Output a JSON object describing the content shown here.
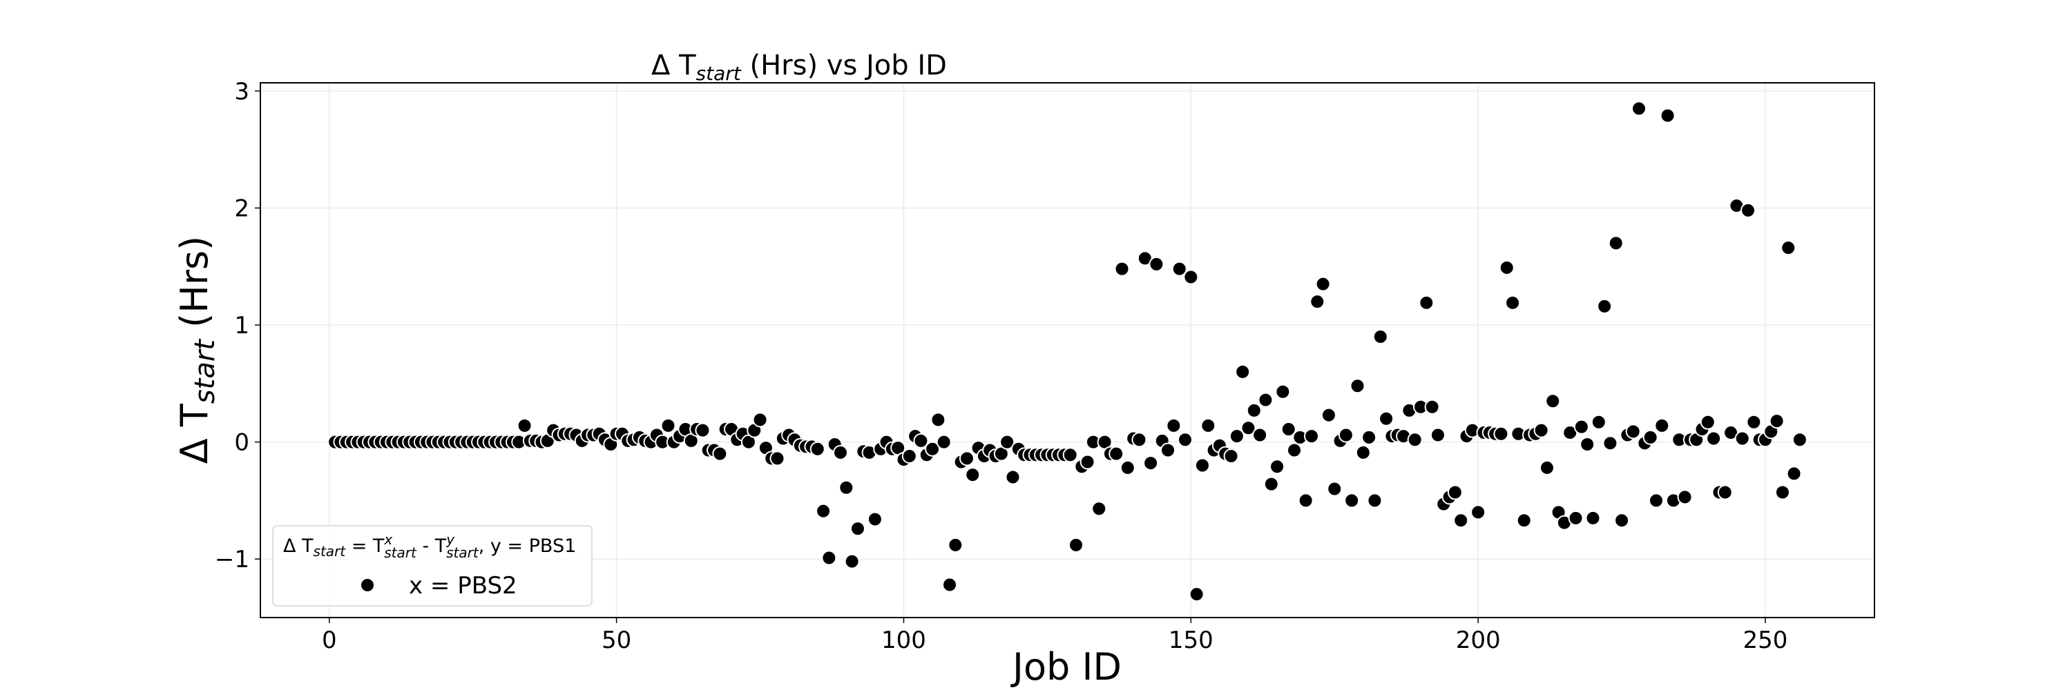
{
  "chart_data": {
    "type": "scatter",
    "title": {
      "prefix": "Δ T",
      "sub": "start",
      "suffix": " (Hrs) vs Job ID"
    },
    "xlabel": "Job ID",
    "ylabel": {
      "prefix": "Δ T",
      "sub": "start",
      "suffix": " (Hrs)"
    },
    "xlim": [
      -12,
      269
    ],
    "ylim": [
      -1.5,
      3.07
    ],
    "xticks": [
      0,
      50,
      100,
      150,
      200,
      250
    ],
    "yticks": [
      -1,
      0,
      1,
      2,
      3
    ],
    "grid": true,
    "marker_color": "#000000",
    "legend": {
      "placement": "lower-left",
      "title": {
        "a": "Δ T",
        "a_sub": "start",
        "b": " = T",
        "b_sup": "x",
        "b_sub": "start",
        "c": " - T",
        "c_sup": "y",
        "c_sub": "start",
        "d": ", y = PBS1"
      },
      "entries": [
        {
          "name": "x = PBS2"
        }
      ]
    },
    "series": [
      {
        "name": "x = PBS2",
        "points": [
          [
            1,
            0
          ],
          [
            2,
            0
          ],
          [
            3,
            0
          ],
          [
            4,
            0
          ],
          [
            5,
            0
          ],
          [
            6,
            0
          ],
          [
            7,
            0
          ],
          [
            8,
            0
          ],
          [
            9,
            0
          ],
          [
            10,
            0
          ],
          [
            11,
            0
          ],
          [
            12,
            0
          ],
          [
            13,
            0
          ],
          [
            14,
            0
          ],
          [
            15,
            0
          ],
          [
            16,
            0
          ],
          [
            17,
            0
          ],
          [
            18,
            0
          ],
          [
            19,
            0
          ],
          [
            20,
            0
          ],
          [
            21,
            0
          ],
          [
            22,
            0
          ],
          [
            23,
            0
          ],
          [
            24,
            0
          ],
          [
            25,
            0
          ],
          [
            26,
            0
          ],
          [
            27,
            0
          ],
          [
            28,
            0
          ],
          [
            29,
            0
          ],
          [
            30,
            0
          ],
          [
            31,
            0
          ],
          [
            32,
            0
          ],
          [
            33,
            0
          ],
          [
            34,
            0.14
          ],
          [
            35,
            0.01
          ],
          [
            36,
            0.01
          ],
          [
            37,
            0
          ],
          [
            38,
            0.01
          ],
          [
            39,
            0.1
          ],
          [
            40,
            0.06
          ],
          [
            41,
            0.07
          ],
          [
            42,
            0.07
          ],
          [
            43,
            0.06
          ],
          [
            44,
            0.01
          ],
          [
            45,
            0.06
          ],
          [
            46,
            0.06
          ],
          [
            47,
            0.07
          ],
          [
            48,
            0.02
          ],
          [
            49,
            -0.02
          ],
          [
            50,
            0.07
          ],
          [
            51,
            0.07
          ],
          [
            52,
            0.01
          ],
          [
            53,
            0.02
          ],
          [
            54,
            0.04
          ],
          [
            55,
            0.01
          ],
          [
            56,
            0
          ],
          [
            57,
            0.06
          ],
          [
            58,
            0
          ],
          [
            59,
            0.14
          ],
          [
            60,
            0
          ],
          [
            61,
            0.05
          ],
          [
            62,
            0.11
          ],
          [
            63,
            0.01
          ],
          [
            64,
            0.11
          ],
          [
            65,
            0.1
          ],
          [
            66,
            -0.07
          ],
          [
            67,
            -0.07
          ],
          [
            68,
            -0.1
          ],
          [
            69,
            0.11
          ],
          [
            70,
            0.11
          ],
          [
            71,
            0.02
          ],
          [
            72,
            0.07
          ],
          [
            73,
            0
          ],
          [
            74,
            0.1
          ],
          [
            75,
            0.19
          ],
          [
            76,
            -0.05
          ],
          [
            77,
            -0.14
          ],
          [
            78,
            -0.14
          ],
          [
            79,
            0.03
          ],
          [
            80,
            0.06
          ],
          [
            81,
            0.02
          ],
          [
            82,
            -0.03
          ],
          [
            83,
            -0.04
          ],
          [
            84,
            -0.04
          ],
          [
            85,
            -0.06
          ],
          [
            86,
            -0.59
          ],
          [
            87,
            -0.99
          ],
          [
            88,
            -0.02
          ],
          [
            89,
            -0.09
          ],
          [
            90,
            -0.39
          ],
          [
            91,
            -1.02
          ],
          [
            92,
            -0.74
          ],
          [
            93,
            -0.08
          ],
          [
            94,
            -0.09
          ],
          [
            95,
            -0.66
          ],
          [
            96,
            -0.06
          ],
          [
            97,
            0
          ],
          [
            98,
            -0.06
          ],
          [
            99,
            -0.05
          ],
          [
            100,
            -0.15
          ],
          [
            101,
            -0.12
          ],
          [
            102,
            0.05
          ],
          [
            103,
            0.01
          ],
          [
            104,
            -0.11
          ],
          [
            105,
            -0.06
          ],
          [
            106,
            0.19
          ],
          [
            107,
            0
          ],
          [
            108,
            -1.22
          ],
          [
            109,
            -0.88
          ],
          [
            110,
            -0.17
          ],
          [
            111,
            -0.14
          ],
          [
            112,
            -0.28
          ],
          [
            113,
            -0.05
          ],
          [
            114,
            -0.12
          ],
          [
            115,
            -0.07
          ],
          [
            116,
            -0.12
          ],
          [
            117,
            -0.1
          ],
          [
            118,
            0
          ],
          [
            119,
            -0.3
          ],
          [
            120,
            -0.06
          ],
          [
            121,
            -0.11
          ],
          [
            122,
            -0.11
          ],
          [
            123,
            -0.11
          ],
          [
            124,
            -0.11
          ],
          [
            125,
            -0.11
          ],
          [
            126,
            -0.11
          ],
          [
            127,
            -0.11
          ],
          [
            128,
            -0.11
          ],
          [
            129,
            -0.11
          ],
          [
            130,
            -0.88
          ],
          [
            131,
            -0.21
          ],
          [
            132,
            -0.17
          ],
          [
            133,
            0
          ],
          [
            134,
            -0.57
          ],
          [
            135,
            0
          ],
          [
            136,
            -0.1
          ],
          [
            137,
            -0.1
          ],
          [
            138,
            1.48
          ],
          [
            139,
            -0.22
          ],
          [
            140,
            0.03
          ],
          [
            141,
            0.02
          ],
          [
            142,
            1.57
          ],
          [
            143,
            -0.18
          ],
          [
            144,
            1.52
          ],
          [
            145,
            0.01
          ],
          [
            146,
            -0.07
          ],
          [
            147,
            0.14
          ],
          [
            148,
            1.48
          ],
          [
            149,
            0.02
          ],
          [
            150,
            1.41
          ],
          [
            151,
            -1.3
          ],
          [
            152,
            -0.2
          ],
          [
            153,
            0.14
          ],
          [
            154,
            -0.07
          ],
          [
            155,
            -0.03
          ],
          [
            156,
            -0.1
          ],
          [
            157,
            -0.12
          ],
          [
            158,
            0.05
          ],
          [
            159,
            0.6
          ],
          [
            160,
            0.12
          ],
          [
            161,
            0.27
          ],
          [
            162,
            0.06
          ],
          [
            163,
            0.36
          ],
          [
            164,
            -0.36
          ],
          [
            165,
            -0.21
          ],
          [
            166,
            0.43
          ],
          [
            167,
            0.11
          ],
          [
            168,
            -0.07
          ],
          [
            169,
            0.04
          ],
          [
            170,
            -0.5
          ],
          [
            171,
            0.05
          ],
          [
            172,
            1.2
          ],
          [
            173,
            1.35
          ],
          [
            174,
            0.23
          ],
          [
            175,
            -0.4
          ],
          [
            176,
            0.01
          ],
          [
            177,
            0.06
          ],
          [
            178,
            -0.5
          ],
          [
            179,
            0.48
          ],
          [
            180,
            -0.09
          ],
          [
            181,
            0.04
          ],
          [
            182,
            -0.5
          ],
          [
            183,
            0.9
          ],
          [
            184,
            0.2
          ],
          [
            185,
            0.05
          ],
          [
            186,
            0.06
          ],
          [
            187,
            0.05
          ],
          [
            188,
            0.27
          ],
          [
            189,
            0.02
          ],
          [
            190,
            0.3
          ],
          [
            191,
            1.19
          ],
          [
            192,
            0.3
          ],
          [
            193,
            0.06
          ],
          [
            194,
            -0.53
          ],
          [
            195,
            -0.47
          ],
          [
            196,
            -0.43
          ],
          [
            197,
            -0.67
          ],
          [
            198,
            0.05
          ],
          [
            199,
            0.1
          ],
          [
            200,
            -0.6
          ],
          [
            201,
            0.08
          ],
          [
            202,
            0.08
          ],
          [
            203,
            0.07
          ],
          [
            204,
            0.07
          ],
          [
            205,
            1.49
          ],
          [
            206,
            1.19
          ],
          [
            207,
            0.07
          ],
          [
            208,
            -0.67
          ],
          [
            209,
            0.06
          ],
          [
            210,
            0.07
          ],
          [
            211,
            0.1
          ],
          [
            212,
            -0.22
          ],
          [
            213,
            0.35
          ],
          [
            214,
            -0.6
          ],
          [
            215,
            -0.69
          ],
          [
            216,
            0.08
          ],
          [
            217,
            -0.65
          ],
          [
            218,
            0.13
          ],
          [
            219,
            -0.02
          ],
          [
            220,
            -0.65
          ],
          [
            221,
            0.17
          ],
          [
            222,
            1.16
          ],
          [
            223,
            -0.01
          ],
          [
            224,
            1.7
          ],
          [
            225,
            -0.67
          ],
          [
            226,
            0.06
          ],
          [
            227,
            0.09
          ],
          [
            228,
            2.85
          ],
          [
            229,
            -0.01
          ],
          [
            230,
            0.04
          ],
          [
            231,
            -0.5
          ],
          [
            232,
            0.14
          ],
          [
            233,
            2.79
          ],
          [
            234,
            -0.5
          ],
          [
            235,
            0.02
          ],
          [
            236,
            -0.47
          ],
          [
            237,
            0.02
          ],
          [
            238,
            0.02
          ],
          [
            239,
            0.11
          ],
          [
            240,
            0.17
          ],
          [
            241,
            0.03
          ],
          [
            242,
            -0.43
          ],
          [
            243,
            -0.43
          ],
          [
            244,
            0.08
          ],
          [
            245,
            2.02
          ],
          [
            246,
            0.03
          ],
          [
            247,
            1.98
          ],
          [
            248,
            0.17
          ],
          [
            249,
            0.02
          ],
          [
            250,
            0.02
          ],
          [
            251,
            0.09
          ],
          [
            252,
            0.18
          ],
          [
            253,
            -0.43
          ],
          [
            254,
            1.66
          ],
          [
            255,
            -0.27
          ],
          [
            256,
            0.02
          ]
        ]
      }
    ]
  }
}
